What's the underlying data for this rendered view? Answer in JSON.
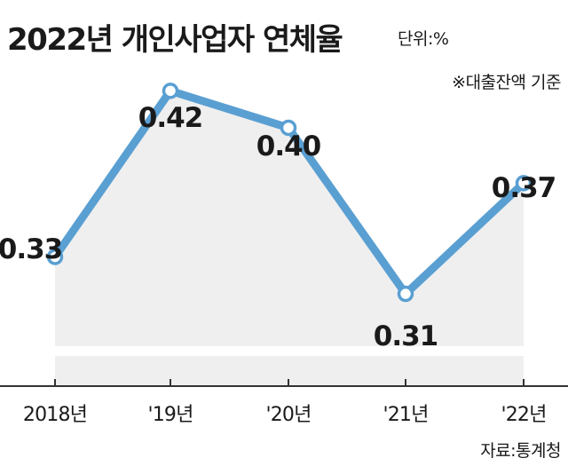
{
  "header": {
    "title": "2022년 개인사업자 연체율",
    "unit": "단위:%",
    "note": "※대출잔액 기준"
  },
  "footer": {
    "source": "자료:통계청"
  },
  "chart_data": {
    "type": "line",
    "categories": [
      "2018년",
      "'19년",
      "'20년",
      "'21년",
      "'22년"
    ],
    "values": [
      0.33,
      0.42,
      0.4,
      0.31,
      0.37
    ],
    "value_labels": [
      "0.33",
      "0.42",
      "0.40",
      "0.31",
      "0.37"
    ],
    "ylim": [
      0.26,
      0.45
    ],
    "grid": false,
    "legend": "none",
    "colors": {
      "line": "#5a9fd2",
      "area": "#efefef"
    }
  }
}
